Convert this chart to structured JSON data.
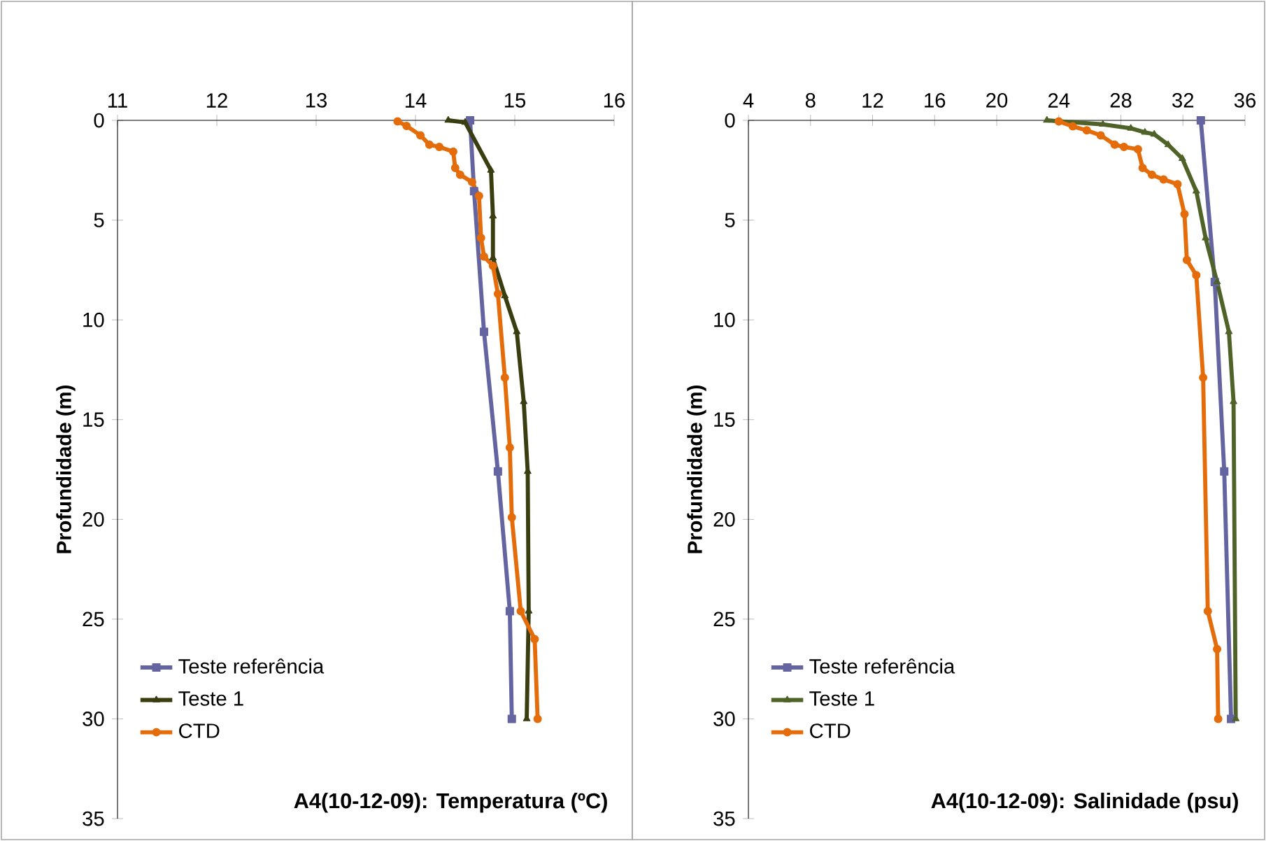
{
  "chart_data": [
    {
      "type": "line",
      "title": "A4(10-12-09): Temperatura (ºC)",
      "ylabel": "Profundidade (m)",
      "xlim": [
        11,
        16
      ],
      "xticks": [
        11,
        12,
        13,
        14,
        15,
        16
      ],
      "ylim": [
        35,
        0
      ],
      "yticks": [
        0,
        5,
        10,
        15,
        20,
        25,
        30,
        35
      ],
      "legend": "bottom left",
      "grid": false,
      "series": [
        {
          "name": "Teste referência",
          "color": "#6464a0",
          "marker": "square",
          "x": [
            14.55,
            14.59,
            14.69,
            14.83,
            14.95,
            14.97
          ],
          "values": [
            0,
            3.55,
            10.6,
            17.6,
            24.6,
            30
          ]
        },
        {
          "name": "Teste 1",
          "color": "#3a3d10",
          "marker": "triangle",
          "x": [
            14.33,
            14.5,
            14.76,
            14.78,
            14.78,
            14.9,
            15.02,
            15.09,
            15.13,
            15.14,
            15.12
          ],
          "values": [
            0,
            0.1,
            2.5,
            4.8,
            6.9,
            8.8,
            10.6,
            14.1,
            17.6,
            24.6,
            30
          ]
        },
        {
          "name": "CTD",
          "color": "#e46c0a",
          "marker": "circle",
          "x": [
            13.82,
            13.91,
            14.05,
            14.14,
            14.24,
            14.38,
            14.4,
            14.45,
            14.57,
            14.64,
            14.66,
            14.69,
            14.78,
            14.83,
            14.9,
            14.95,
            14.97,
            15.06,
            15.2,
            15.23
          ],
          "values": [
            0.05,
            0.28,
            0.75,
            1.22,
            1.33,
            1.57,
            2.38,
            2.73,
            3.09,
            3.79,
            5.89,
            6.83,
            7.29,
            8.7,
            12.9,
            16.4,
            19.9,
            24.6,
            26,
            30
          ]
        }
      ]
    },
    {
      "type": "line",
      "title": "A4(10-12-09): Salinidade (psu)",
      "ylabel": "Profundidade (m)",
      "xlim": [
        4,
        36
      ],
      "xticks": [
        4,
        8,
        12,
        16,
        20,
        24,
        28,
        32,
        36
      ],
      "ylim": [
        35,
        0
      ],
      "yticks": [
        0,
        5,
        10,
        15,
        20,
        25,
        30,
        35
      ],
      "legend": "bottom left",
      "grid": false,
      "series": [
        {
          "name": "Teste referência",
          "color": "#6464a0",
          "marker": "square",
          "x": [
            33.15,
            34.05,
            34.66,
            35.1
          ],
          "values": [
            0,
            8.1,
            17.6,
            30
          ]
        },
        {
          "name": "Teste 1",
          "color": "#4f6228",
          "marker": "triangle",
          "x": [
            23.23,
            26.84,
            28.64,
            29.55,
            30.15,
            31.05,
            31.96,
            32.86,
            33.46,
            34.2,
            34.96,
            35.26,
            35.4
          ],
          "values": [
            0,
            0.2,
            0.4,
            0.6,
            0.7,
            1.22,
            1.92,
            3.55,
            5.9,
            8.1,
            10.6,
            14.1,
            30
          ]
        },
        {
          "name": "CTD",
          "color": "#e46c0a",
          "marker": "circle",
          "x": [
            24.0,
            24.9,
            25.8,
            26.7,
            27.6,
            28.2,
            29.1,
            29.4,
            30.0,
            30.75,
            31.65,
            32.1,
            32.25,
            32.86,
            33.3,
            33.6,
            34.2,
            34.27
          ],
          "values": [
            0.05,
            0.3,
            0.5,
            0.75,
            1.22,
            1.33,
            1.45,
            2.38,
            2.73,
            2.96,
            3.2,
            4.7,
            7.0,
            7.76,
            12.9,
            24.6,
            26.5,
            30
          ]
        }
      ]
    }
  ]
}
